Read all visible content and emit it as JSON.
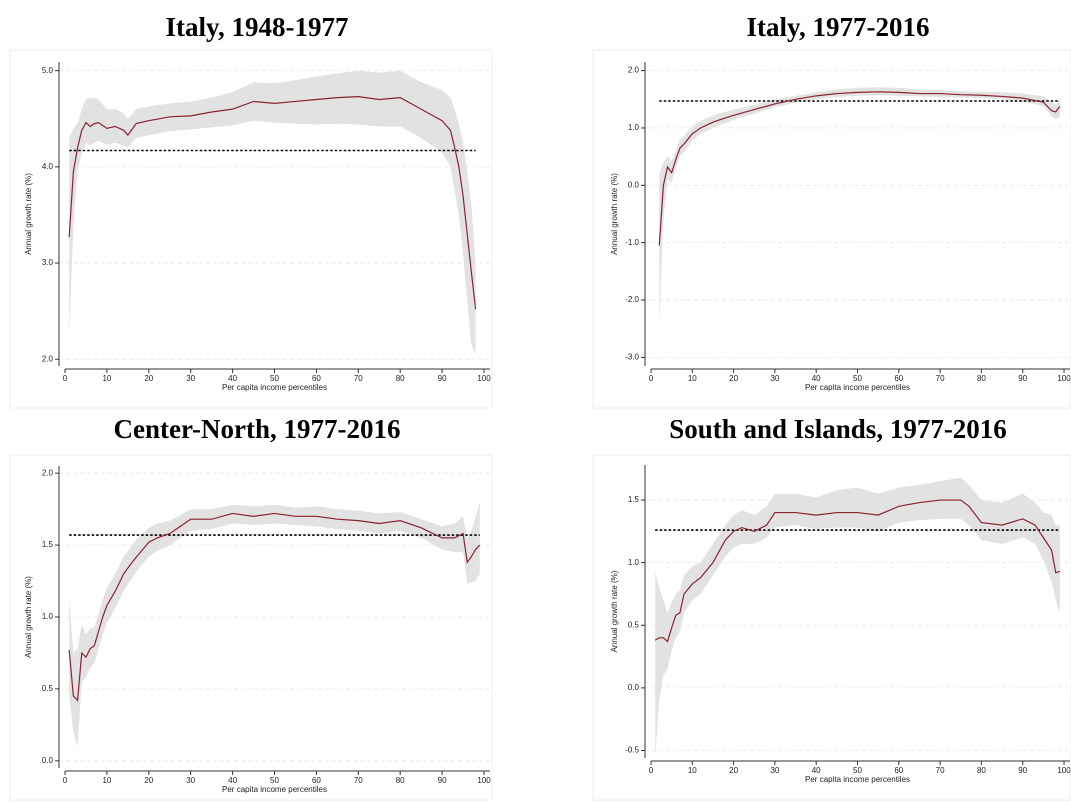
{
  "chart_data": [
    {
      "type": "line",
      "title": "Italy, 1948-1977",
      "x_label": "Per capita income percentiles",
      "y_label": "Annual growth rate (%)",
      "x": [
        1,
        2,
        3,
        4,
        5,
        6,
        7,
        8,
        10,
        12,
        14,
        15,
        17,
        20,
        25,
        30,
        35,
        40,
        45,
        50,
        55,
        60,
        65,
        70,
        75,
        80,
        85,
        90,
        92,
        93,
        94,
        95,
        96,
        97,
        98
      ],
      "series": [
        {
          "color": "#8b2232",
          "values": [
            3.27,
            3.95,
            4.2,
            4.38,
            4.46,
            4.42,
            4.45,
            4.46,
            4.4,
            4.42,
            4.38,
            4.33,
            4.45,
            4.48,
            4.52,
            4.53,
            4.57,
            4.6,
            4.68,
            4.66,
            4.68,
            4.7,
            4.72,
            4.73,
            4.7,
            4.72,
            4.6,
            4.48,
            4.38,
            4.2,
            4.0,
            3.7,
            3.3,
            2.9,
            2.52
          ]
        }
      ],
      "band": {
        "color": "#e2e2e2",
        "lower": [
          2.25,
          3.4,
          3.95,
          4.15,
          4.25,
          4.22,
          4.25,
          4.27,
          4.23,
          4.25,
          4.22,
          4.2,
          4.3,
          4.33,
          4.37,
          4.39,
          4.41,
          4.43,
          4.48,
          4.46,
          4.45,
          4.44,
          4.45,
          4.44,
          4.42,
          4.42,
          4.3,
          4.15,
          4.0,
          3.75,
          3.5,
          3.1,
          2.6,
          2.15,
          2.05
        ],
        "upper": [
          4.3,
          4.4,
          4.45,
          4.6,
          4.7,
          4.72,
          4.72,
          4.7,
          4.6,
          4.6,
          4.56,
          4.5,
          4.6,
          4.63,
          4.66,
          4.68,
          4.72,
          4.78,
          4.88,
          4.87,
          4.9,
          4.94,
          4.97,
          5.0,
          4.98,
          5.0,
          4.88,
          4.8,
          4.72,
          4.6,
          4.45,
          4.25,
          3.95,
          3.6,
          3.0
        ]
      },
      "mean": {
        "value": 4.17,
        "color": "#000000"
      },
      "xlim": [
        0,
        100
      ],
      "ylim": [
        1.93,
        5.09
      ],
      "xticks": [
        0,
        10,
        20,
        30,
        40,
        50,
        60,
        70,
        80,
        90,
        100
      ],
      "yticks": [
        {
          "value": 2,
          "label": "2.0"
        },
        {
          "value": 3,
          "label": "3.0"
        },
        {
          "value": 4,
          "label": "4.0"
        },
        {
          "value": 5,
          "label": "5.0"
        }
      ],
      "grid": true
    },
    {
      "type": "line",
      "title": "Italy, 1977-2016",
      "x_label": "Per capita income percentiles",
      "y_label": "Annual growth rate (%)",
      "x": [
        2,
        3,
        4,
        5,
        6,
        7,
        8,
        10,
        12,
        15,
        17,
        20,
        25,
        30,
        35,
        40,
        45,
        50,
        55,
        60,
        65,
        70,
        75,
        80,
        85,
        90,
        95,
        97,
        98,
        99
      ],
      "series": [
        {
          "color": "#8b2232",
          "values": [
            -1.05,
            0.0,
            0.32,
            0.22,
            0.45,
            0.65,
            0.72,
            0.9,
            1.0,
            1.1,
            1.15,
            1.22,
            1.32,
            1.42,
            1.5,
            1.56,
            1.6,
            1.62,
            1.63,
            1.62,
            1.6,
            1.6,
            1.58,
            1.57,
            1.55,
            1.52,
            1.45,
            1.3,
            1.28,
            1.38
          ]
        }
      ],
      "band": {
        "color": "#e2e2e2",
        "lower": [
          -2.4,
          -0.6,
          0.1,
          0.05,
          0.3,
          0.5,
          0.58,
          0.78,
          0.9,
          1.0,
          1.06,
          1.14,
          1.25,
          1.36,
          1.44,
          1.5,
          1.54,
          1.56,
          1.57,
          1.56,
          1.55,
          1.54,
          1.53,
          1.52,
          1.5,
          1.46,
          1.38,
          1.2,
          1.15,
          1.2
        ],
        "upper": [
          0.2,
          0.4,
          0.5,
          0.42,
          0.6,
          0.8,
          0.86,
          1.03,
          1.12,
          1.22,
          1.26,
          1.32,
          1.4,
          1.5,
          1.56,
          1.62,
          1.67,
          1.7,
          1.71,
          1.7,
          1.67,
          1.66,
          1.64,
          1.63,
          1.62,
          1.6,
          1.55,
          1.45,
          1.4,
          1.5
        ]
      },
      "mean": {
        "value": 1.47,
        "color": "#000000"
      },
      "xlim": [
        0,
        100
      ],
      "ylim": [
        -3.15,
        2.15
      ],
      "xticks": [
        0,
        10,
        20,
        30,
        40,
        50,
        60,
        70,
        80,
        90,
        100
      ],
      "yticks": [
        {
          "value": -3,
          "label": "-3.0"
        },
        {
          "value": -2,
          "label": "-2.0"
        },
        {
          "value": -1,
          "label": "-1.0"
        },
        {
          "value": 0,
          "label": "0.0"
        },
        {
          "value": 1,
          "label": "1.0"
        },
        {
          "value": 2,
          "label": "2.0"
        }
      ],
      "grid": true
    },
    {
      "type": "line",
      "title": "Center-North, 1977-2016",
      "x_label": "Per capita income percentiles",
      "y_label": "Annual growth rate (%)",
      "x": [
        1,
        2,
        3,
        4,
        5,
        6,
        7,
        8,
        9,
        10,
        12,
        14,
        16,
        18,
        20,
        22,
        25,
        27,
        30,
        35,
        40,
        45,
        50,
        55,
        60,
        65,
        70,
        75,
        80,
        85,
        90,
        93,
        95,
        96,
        97,
        98,
        99
      ],
      "series": [
        {
          "color": "#8b2232",
          "values": [
            0.77,
            0.45,
            0.42,
            0.75,
            0.72,
            0.78,
            0.8,
            0.9,
            1.0,
            1.08,
            1.18,
            1.3,
            1.38,
            1.45,
            1.52,
            1.55,
            1.58,
            1.62,
            1.68,
            1.68,
            1.72,
            1.7,
            1.72,
            1.7,
            1.7,
            1.68,
            1.67,
            1.65,
            1.67,
            1.62,
            1.55,
            1.55,
            1.58,
            1.38,
            1.42,
            1.47,
            1.5
          ]
        }
      ],
      "band": {
        "color": "#e2e2e2",
        "lower": [
          0.45,
          0.2,
          0.1,
          0.55,
          0.58,
          0.65,
          0.68,
          0.78,
          0.88,
          0.96,
          1.06,
          1.18,
          1.27,
          1.35,
          1.42,
          1.46,
          1.5,
          1.54,
          1.6,
          1.61,
          1.65,
          1.64,
          1.65,
          1.64,
          1.63,
          1.61,
          1.6,
          1.58,
          1.6,
          1.55,
          1.47,
          1.45,
          1.45,
          1.23,
          1.24,
          1.25,
          1.3
        ],
        "upper": [
          1.12,
          0.75,
          0.78,
          0.95,
          0.88,
          0.92,
          0.93,
          1.02,
          1.12,
          1.2,
          1.3,
          1.42,
          1.5,
          1.57,
          1.62,
          1.65,
          1.67,
          1.7,
          1.75,
          1.75,
          1.78,
          1.77,
          1.78,
          1.76,
          1.77,
          1.75,
          1.74,
          1.72,
          1.73,
          1.68,
          1.63,
          1.65,
          1.7,
          1.55,
          1.6,
          1.7,
          1.8
        ]
      },
      "mean": {
        "value": 1.57,
        "color": "#000000"
      },
      "xlim": [
        0,
        100
      ],
      "ylim": [
        -0.05,
        2.05
      ],
      "xticks": [
        0,
        10,
        20,
        30,
        40,
        50,
        60,
        70,
        80,
        90,
        100
      ],
      "yticks": [
        {
          "value": 0,
          "label": "0.0"
        },
        0.5,
        {
          "value": 1,
          "label": "1.0"
        },
        1.5,
        {
          "value": 2,
          "label": "2.0"
        }
      ],
      "grid": true
    },
    {
      "type": "line",
      "title": "South and Islands, 1977-2016",
      "x_label": "Per capita income percentiles",
      "y_label": "Annual growth rate (%)",
      "x": [
        1,
        2,
        3,
        4,
        5,
        6,
        7,
        8,
        10,
        12,
        15,
        18,
        20,
        22,
        25,
        28,
        30,
        35,
        40,
        45,
        50,
        55,
        60,
        65,
        70,
        75,
        77,
        80,
        85,
        90,
        93,
        95,
        97,
        98,
        99
      ],
      "series": [
        {
          "color": "#8b2232",
          "values": [
            0.38,
            0.4,
            0.4,
            0.37,
            0.48,
            0.58,
            0.6,
            0.75,
            0.83,
            0.88,
            1.0,
            1.18,
            1.25,
            1.28,
            1.25,
            1.3,
            1.4,
            1.4,
            1.38,
            1.4,
            1.4,
            1.38,
            1.45,
            1.48,
            1.5,
            1.5,
            1.45,
            1.32,
            1.3,
            1.35,
            1.3,
            1.2,
            1.1,
            0.92,
            0.93
          ]
        }
      ],
      "band": {
        "color": "#e2e2e2",
        "lower": [
          -0.55,
          -0.1,
          0.1,
          0.15,
          0.3,
          0.4,
          0.45,
          0.6,
          0.7,
          0.75,
          0.9,
          1.05,
          1.12,
          1.15,
          1.15,
          1.2,
          1.28,
          1.3,
          1.27,
          1.28,
          1.28,
          1.25,
          1.32,
          1.34,
          1.35,
          1.35,
          1.3,
          1.18,
          1.15,
          1.2,
          1.15,
          1.02,
          0.85,
          0.7,
          0.6
        ],
        "upper": [
          0.92,
          0.8,
          0.7,
          0.6,
          0.68,
          0.75,
          0.78,
          0.9,
          0.97,
          1.0,
          1.15,
          1.3,
          1.38,
          1.42,
          1.38,
          1.45,
          1.55,
          1.55,
          1.52,
          1.58,
          1.6,
          1.55,
          1.6,
          1.62,
          1.65,
          1.68,
          1.62,
          1.5,
          1.48,
          1.55,
          1.48,
          1.4,
          1.38,
          1.3,
          1.3
        ]
      },
      "mean": {
        "value": 1.26,
        "color": "#000000"
      },
      "xlim": [
        0,
        100
      ],
      "ylim": [
        -0.56,
        1.78
      ],
      "xticks": [
        0,
        10,
        20,
        30,
        40,
        50,
        60,
        70,
        80,
        90,
        100
      ],
      "yticks": [
        -0.5,
        {
          "value": 0,
          "label": "0.0"
        },
        0.5,
        {
          "value": 1,
          "label": "1.0"
        },
        1.5
      ],
      "grid": true
    }
  ]
}
